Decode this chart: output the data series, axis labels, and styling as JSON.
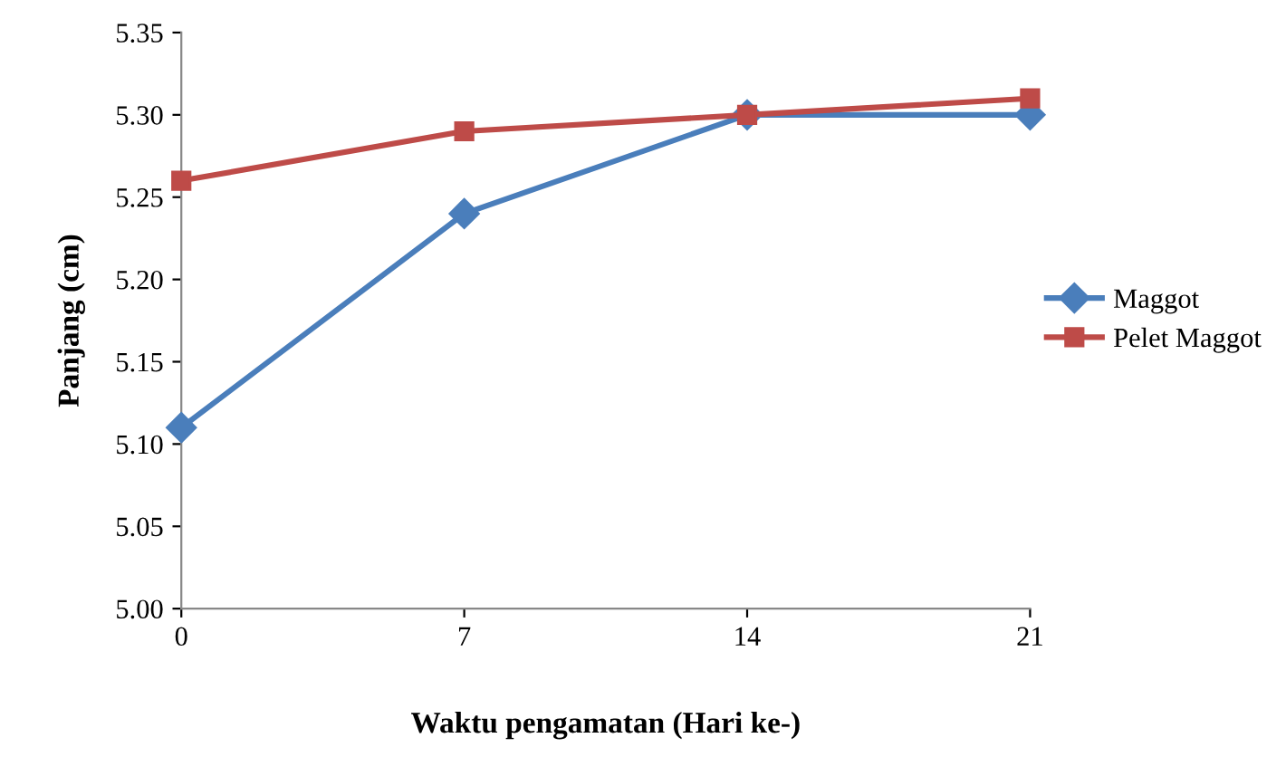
{
  "chart_data": {
    "type": "line",
    "xlabel": "Waktu pengamatan (Hari ke-)",
    "ylabel": "Panjang (cm)",
    "categories": [
      "0",
      "7",
      "14",
      "21"
    ],
    "series": [
      {
        "name": "Maggot",
        "color": "#4a7ebb",
        "marker": "diamond",
        "values": [
          5.11,
          5.24,
          5.3,
          5.3
        ]
      },
      {
        "name": "Pelet Maggot",
        "color": "#be4b48",
        "marker": "square",
        "values": [
          5.26,
          5.29,
          5.3,
          5.31
        ]
      }
    ],
    "ylim": [
      5.0,
      5.35
    ],
    "yticks": [
      {
        "value": 5.0,
        "label": "5.00"
      },
      {
        "value": 5.05,
        "label": "5.05"
      },
      {
        "value": 5.1,
        "label": "5.10"
      },
      {
        "value": 5.15,
        "label": "5.15"
      },
      {
        "value": 5.2,
        "label": "5.20"
      },
      {
        "value": 5.25,
        "label": "5.25"
      },
      {
        "value": 5.3,
        "label": "5.30"
      },
      {
        "value": 5.35,
        "label": "5.35"
      }
    ],
    "grid": false,
    "legend": "right",
    "line_style": "solid"
  }
}
